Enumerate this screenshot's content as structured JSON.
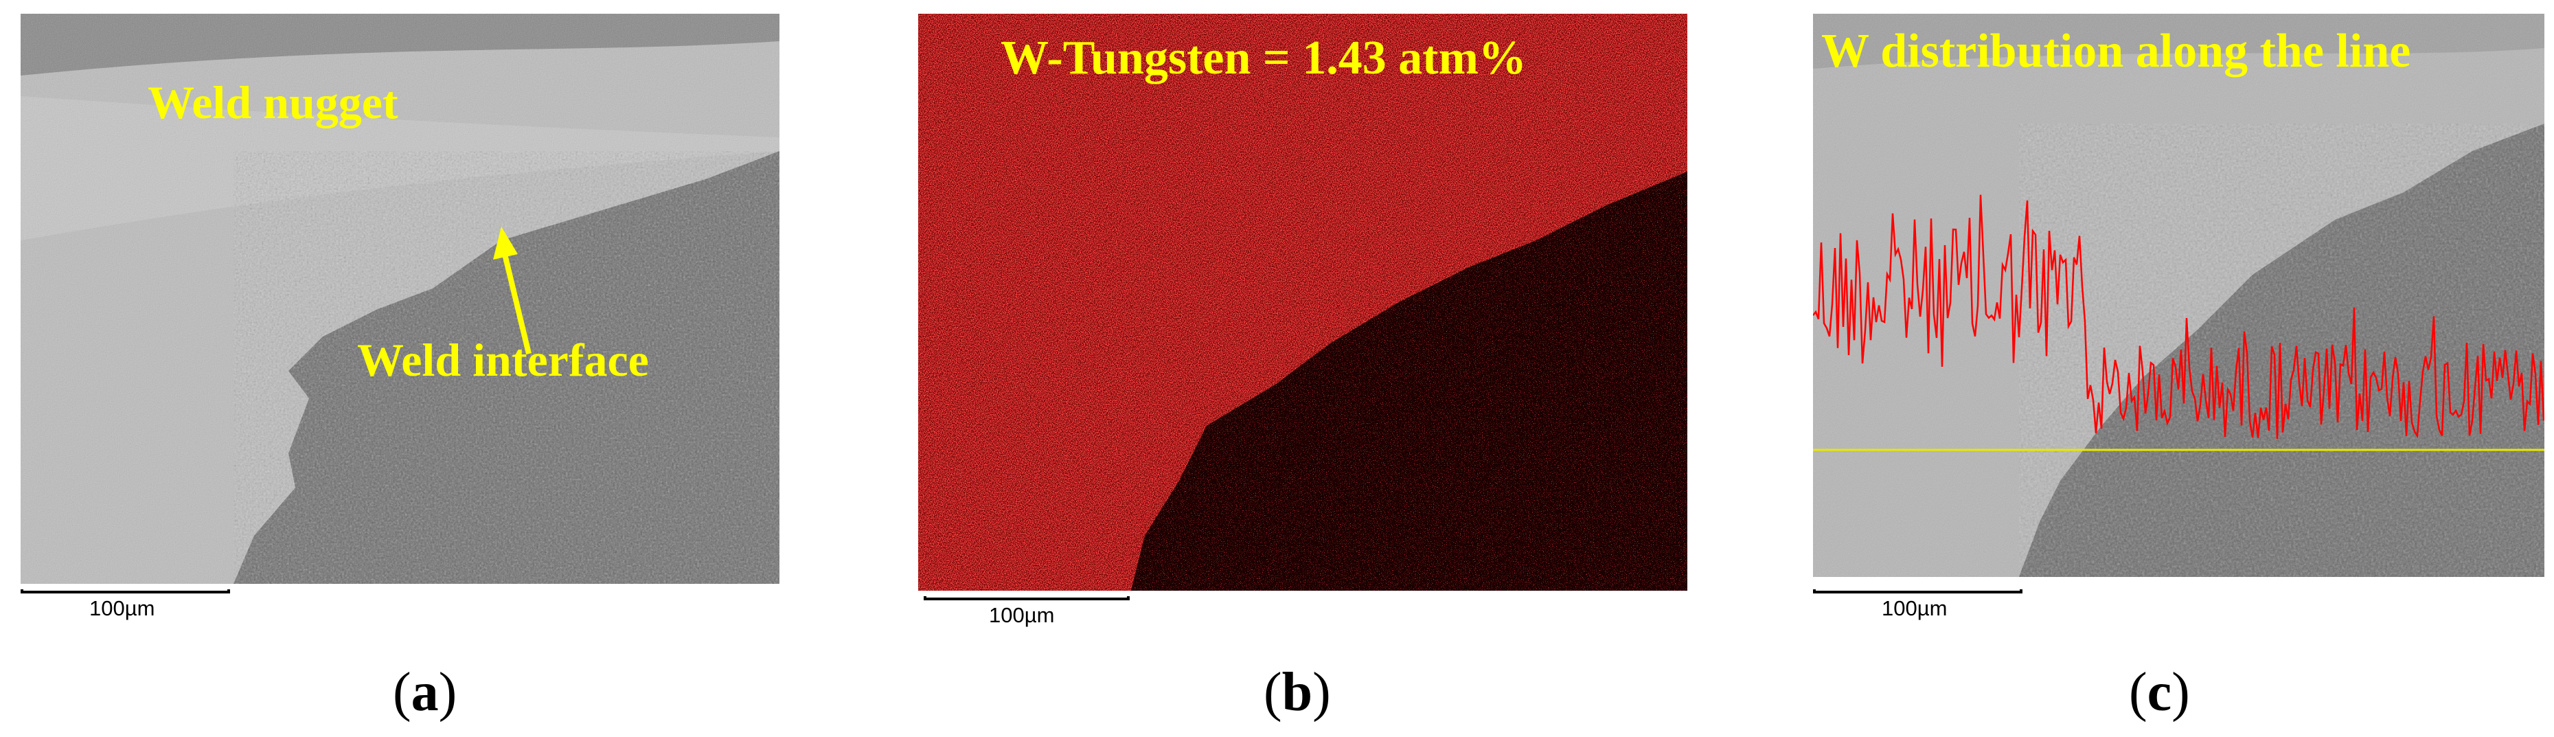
{
  "panels": [
    {
      "id": "a",
      "caption_letter": "a",
      "labels": [
        "Weld nugget",
        "Weld interface"
      ],
      "scale_bar": "100µm"
    },
    {
      "id": "b",
      "caption_letter": "b",
      "labels": [
        "W-Tungsten = 1.43 atm%"
      ],
      "scale_bar": "100µm"
    },
    {
      "id": "c",
      "caption_letter": "c",
      "labels": [
        "W distribution along the line"
      ],
      "scale_bar": "100µm"
    }
  ],
  "colors": {
    "annotation": "#ffff00",
    "w_map": "#e01010",
    "line_scan": "#ff0000",
    "scan_line": "#e8e800"
  }
}
